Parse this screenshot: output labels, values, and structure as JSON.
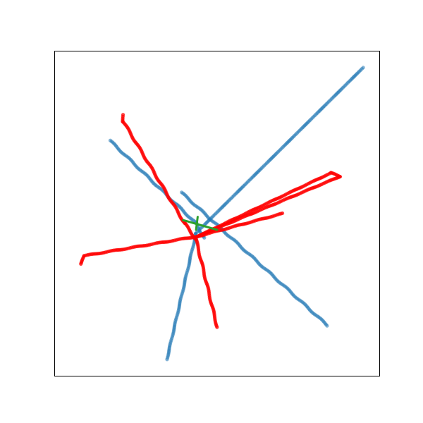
{
  "chart_data": {
    "type": "scatter",
    "title": "",
    "xlabel": "",
    "ylabel": "",
    "xlim": [
      0,
      100
    ],
    "ylim": [
      0,
      100
    ],
    "grid": false,
    "axis_ticks": false,
    "colors": {
      "blue": "#1f77b4",
      "red": "#ff0000",
      "green": "#2ca02c"
    },
    "series": [
      {
        "color": "blue",
        "tracks": [
          {
            "points": [
              [
                39,
                56.5
              ],
              [
                84,
                15.5
              ]
            ]
          },
          {
            "points": [
              [
                17,
                72.5
              ],
              [
                43.5,
                47
              ],
              [
                46,
                42.5
              ]
            ]
          },
          {
            "points": [
              [
                34.5,
                5
              ],
              [
                43.5,
                44
              ],
              [
                95,
                95
              ]
            ]
          }
        ]
      },
      {
        "color": "red",
        "tracks": [
          {
            "points": [
              [
                21,
                80.5
              ],
              [
                21,
                78.5
              ],
              [
                40,
                47
              ],
              [
                43.5,
                42
              ],
              [
                50,
                15
              ]
            ]
          },
          {
            "points": [
              [
                8,
                34.5
              ],
              [
                9,
                37
              ],
              [
                44,
                43
              ],
              [
                88,
                61.5
              ],
              [
                85,
                62.5
              ],
              [
                44,
                43
              ]
            ]
          },
          {
            "points": [
              [
                44,
                43
              ],
              [
                70,
                50
              ]
            ]
          }
        ]
      },
      {
        "color": "green",
        "tracks": [
          {
            "points": [
              [
                39.5,
                48
              ],
              [
                50,
                45
              ]
            ]
          },
          {
            "points": [
              [
                44,
                49
              ],
              [
                43.5,
                45
              ]
            ]
          }
        ]
      }
    ]
  }
}
